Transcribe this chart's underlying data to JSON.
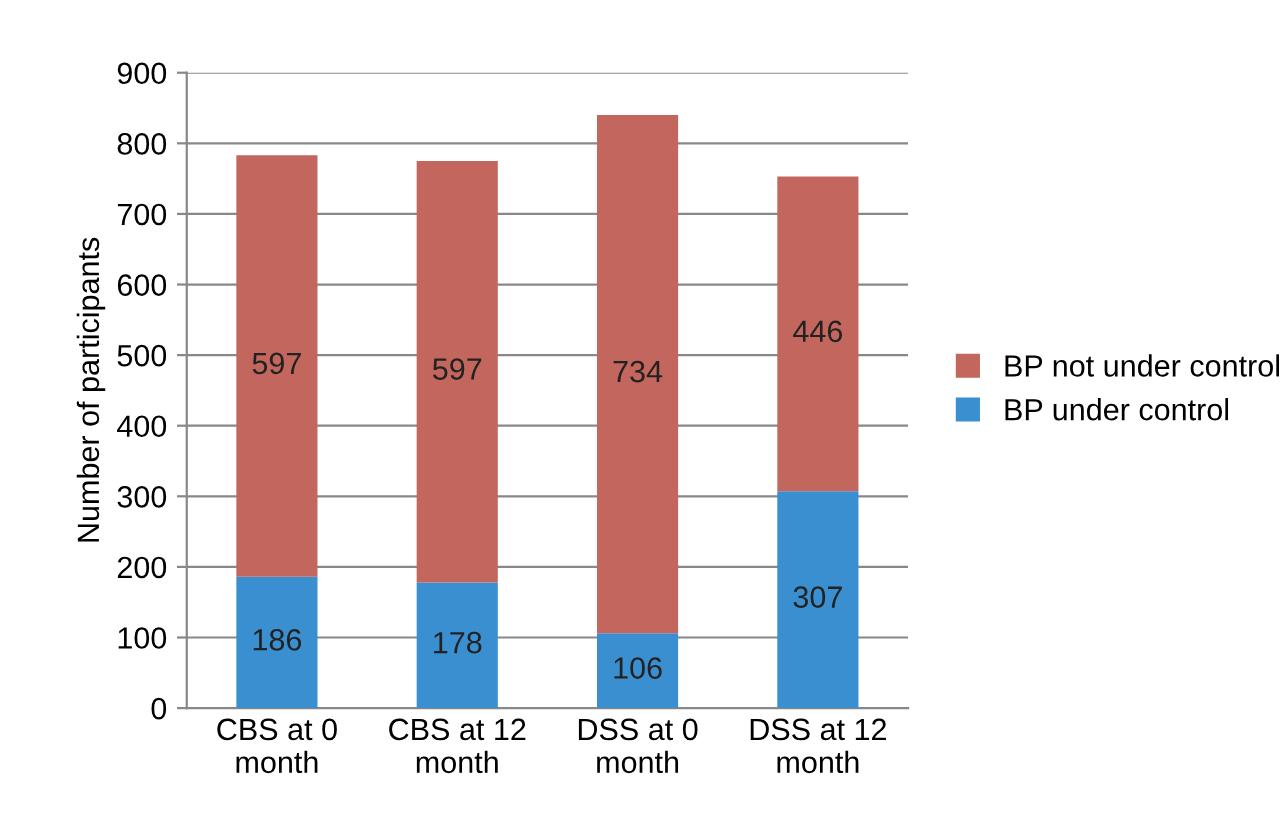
{
  "chart_data": {
    "type": "bar",
    "stacked": true,
    "ylabel": "Number of participants",
    "categories": [
      "CBS at 0\nmonth",
      "CBS at 12\nmonth",
      "DSS at 0\nmonth",
      "DSS at 12\nmonth"
    ],
    "series": [
      {
        "name": "BP under control",
        "color": "#3a8fd0",
        "values": [
          186,
          178,
          106,
          307
        ]
      },
      {
        "name": "BP not under control",
        "color": "#c3665e",
        "values": [
          597,
          597,
          734,
          446
        ]
      }
    ],
    "ylim": [
      0,
      900
    ],
    "yticks": [
      0,
      100,
      200,
      300,
      400,
      500,
      600,
      700,
      800,
      900
    ],
    "grid": "y",
    "legend": "right",
    "data_labels": true
  }
}
